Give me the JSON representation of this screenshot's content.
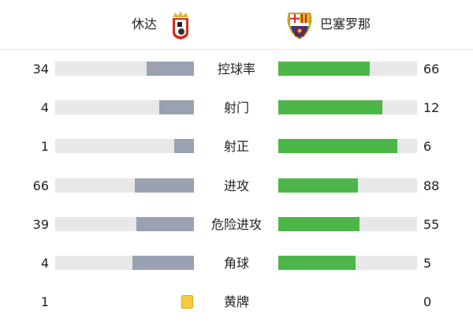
{
  "header": {
    "home": {
      "name": "休达",
      "logo": "ceuta-crest-icon"
    },
    "away": {
      "name": "巴塞罗那",
      "logo": "fcb-crest-icon"
    }
  },
  "colors": {
    "home_bar": "#9aa1b0",
    "away_bar": "#4cb748",
    "track": "#e8e8e8",
    "yellow_card": "#f7cb3c"
  },
  "stats": [
    {
      "label": "控球率",
      "home": "34",
      "away": "66"
    },
    {
      "label": "射门",
      "home": "4",
      "away": "12"
    },
    {
      "label": "射正",
      "home": "1",
      "away": "6"
    },
    {
      "label": "进攻",
      "home": "66",
      "away": "88"
    },
    {
      "label": "危险进攻",
      "home": "39",
      "away": "55"
    },
    {
      "label": "角球",
      "home": "4",
      "away": "5"
    }
  ],
  "yellow_cards": {
    "label": "黄牌",
    "home": "1",
    "away": "0",
    "icon": "yellow-card-icon"
  }
}
